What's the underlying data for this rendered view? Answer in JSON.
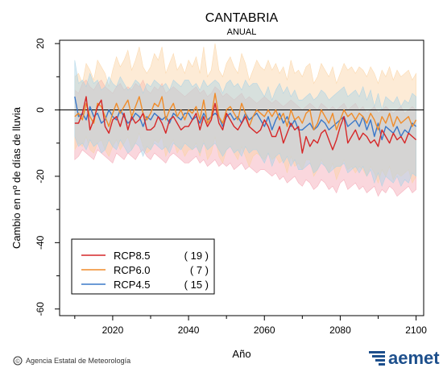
{
  "chart_data": {
    "type": "line",
    "title": "CANTABRIA",
    "subtitle": "ANUAL",
    "xlabel": "Año",
    "ylabel": "Cambio en nº de días de lluvia",
    "xlim": [
      2006,
      2102
    ],
    "ylim": [
      -62,
      21
    ],
    "x_ticks": [
      "2020",
      "2040",
      "2060",
      "2080",
      "2100"
    ],
    "y_ticks": [
      "20",
      "0",
      "-20",
      "-40",
      "-60"
    ],
    "zero_line": true,
    "legend_position": "bottom-left",
    "x": [
      2010,
      2011,
      2012,
      2013,
      2014,
      2015,
      2016,
      2017,
      2018,
      2019,
      2020,
      2021,
      2022,
      2023,
      2024,
      2025,
      2026,
      2027,
      2028,
      2029,
      2030,
      2031,
      2032,
      2033,
      2034,
      2035,
      2036,
      2037,
      2038,
      2039,
      2040,
      2041,
      2042,
      2043,
      2044,
      2045,
      2046,
      2047,
      2048,
      2049,
      2050,
      2051,
      2052,
      2053,
      2054,
      2055,
      2056,
      2057,
      2058,
      2059,
      2060,
      2061,
      2062,
      2063,
      2064,
      2065,
      2066,
      2067,
      2068,
      2069,
      2070,
      2071,
      2072,
      2073,
      2074,
      2075,
      2076,
      2077,
      2078,
      2079,
      2080,
      2081,
      2082,
      2083,
      2084,
      2085,
      2086,
      2087,
      2088,
      2089,
      2090,
      2091,
      2092,
      2093,
      2094,
      2095,
      2096,
      2097,
      2098,
      2099,
      2100
    ],
    "series": [
      {
        "name": "RCP8.5",
        "count": "( 19 )",
        "color": "#d62728",
        "band_color": "#f4a6b4",
        "values": [
          -4,
          -4,
          -1,
          4,
          -6,
          -3,
          1,
          3,
          -5,
          -7,
          -3,
          -2,
          -5,
          -1,
          -6,
          -2,
          -4,
          -3,
          -1,
          -6,
          -6,
          -5,
          -2,
          -4,
          -7,
          -3,
          -2,
          -4,
          -6,
          -5,
          -5,
          -3,
          -1,
          -6,
          -2,
          -5,
          -3,
          2,
          -4,
          -6,
          -1,
          -3,
          -5,
          -6,
          -4,
          -2,
          -5,
          -6,
          -7,
          -6,
          -3,
          -5,
          -8,
          -8,
          -5,
          -10,
          -7,
          -4,
          -6,
          -5,
          -13,
          -8,
          -11,
          -9,
          -10,
          -7,
          -6,
          -9,
          -12,
          -9,
          -5,
          -2,
          -10,
          -8,
          -6,
          -9,
          -7,
          -8,
          -10,
          -9,
          -11,
          -6,
          -8,
          -10,
          -7,
          -9,
          -8,
          -10,
          -7,
          -8,
          -9
        ],
        "low": [
          -15,
          -14,
          -12,
          -13,
          -14,
          -15,
          -12,
          -13,
          -14,
          -15,
          -16,
          -13,
          -14,
          -15,
          -13,
          -14,
          -15,
          -13,
          -12,
          -14,
          -15,
          -13,
          -14,
          -15,
          -16,
          -14,
          -13,
          -14,
          -15,
          -16,
          -16,
          -15,
          -14,
          -16,
          -15,
          -17,
          -16,
          -15,
          -17,
          -16,
          -17,
          -16,
          -18,
          -17,
          -16,
          -18,
          -17,
          -18,
          -19,
          -18,
          -18,
          -19,
          -20,
          -19,
          -21,
          -20,
          -22,
          -21,
          -20,
          -22,
          -23,
          -21,
          -22,
          -24,
          -23,
          -21,
          -22,
          -24,
          -23,
          -25,
          -22,
          -21,
          -24,
          -23,
          -22,
          -24,
          -23,
          -25,
          -24,
          -23,
          -26,
          -24,
          -25,
          -23,
          -24,
          -26,
          -25,
          -24,
          -23,
          -25,
          -24
        ],
        "high": [
          6,
          5,
          8,
          9,
          7,
          6,
          8,
          9,
          7,
          6,
          5,
          7,
          8,
          6,
          7,
          6,
          8,
          7,
          9,
          6,
          5,
          7,
          6,
          8,
          5,
          6,
          7,
          6,
          5,
          4,
          5,
          6,
          7,
          5,
          6,
          4,
          5,
          7,
          6,
          4,
          5,
          4,
          3,
          4,
          5,
          3,
          4,
          3,
          2,
          3,
          4,
          3,
          2,
          3,
          2,
          1,
          2,
          3,
          2,
          1,
          0,
          1,
          2,
          1,
          0,
          2,
          1,
          0,
          1,
          0,
          1,
          2,
          0,
          1,
          2,
          0,
          1,
          -1,
          0,
          1,
          -1,
          0,
          1,
          0,
          -1,
          0,
          1,
          -1,
          0,
          1,
          0
        ]
      },
      {
        "name": "RCP6.0",
        "count": "(  7 )",
        "color": "#f08c2a",
        "band_color": "#fbd3a3",
        "values": [
          -2,
          -1,
          -3,
          2,
          -2,
          -4,
          2,
          1,
          -2,
          -5,
          -1,
          2,
          -1,
          1,
          3,
          -2,
          1,
          4,
          -1,
          -3,
          -1,
          2,
          1,
          4,
          -3,
          0,
          2,
          -2,
          0,
          -3,
          0,
          -1,
          1,
          -3,
          3,
          -4,
          -2,
          5,
          -2,
          -4,
          0,
          1,
          -1,
          -3,
          2,
          -1,
          -5,
          -2,
          0,
          -1,
          -2,
          0,
          -2,
          0,
          -3,
          -1,
          -5,
          0,
          -3,
          -2,
          -4,
          -1,
          0,
          -6,
          -4,
          0,
          -2,
          -4,
          -1,
          -6,
          -3,
          0,
          -2,
          -1,
          -3,
          -1,
          -2,
          -4,
          -1,
          -3,
          -6,
          -2,
          -4,
          -1,
          -5,
          -2,
          -4,
          -3,
          -2,
          -5,
          -3
        ],
        "low": [
          -12,
          -10,
          -11,
          -8,
          -12,
          -13,
          -10,
          -9,
          -12,
          -14,
          -11,
          -9,
          -12,
          -10,
          -8,
          -12,
          -10,
          -7,
          -11,
          -13,
          -12,
          -9,
          -10,
          -8,
          -14,
          -11,
          -9,
          -13,
          -11,
          -14,
          -12,
          -12,
          -10,
          -14,
          -9,
          -15,
          -13,
          -8,
          -14,
          -16,
          -12,
          -11,
          -13,
          -15,
          -11,
          -14,
          -17,
          -14,
          -13,
          -14,
          -15,
          -13,
          -15,
          -14,
          -16,
          -15,
          -19,
          -14,
          -17,
          -16,
          -18,
          -15,
          -15,
          -20,
          -18,
          -15,
          -17,
          -19,
          -16,
          -21,
          -18,
          -15,
          -18,
          -17,
          -19,
          -17,
          -18,
          -20,
          -17,
          -19,
          -22,
          -18,
          -20,
          -17,
          -21,
          -19,
          -20,
          -19,
          -18,
          -22,
          -20
        ],
        "high": [
          10,
          11,
          8,
          14,
          12,
          9,
          15,
          13,
          11,
          7,
          12,
          16,
          13,
          15,
          18,
          12,
          15,
          19,
          13,
          11,
          13,
          17,
          15,
          19,
          11,
          14,
          17,
          12,
          14,
          11,
          15,
          13,
          16,
          11,
          19,
          10,
          12,
          20,
          12,
          10,
          14,
          16,
          13,
          11,
          17,
          14,
          9,
          12,
          15,
          13,
          12,
          15,
          12,
          14,
          11,
          13,
          9,
          15,
          11,
          12,
          10,
          13,
          14,
          8,
          10,
          14,
          12,
          10,
          13,
          8,
          11,
          14,
          12,
          13,
          11,
          13,
          12,
          10,
          13,
          11,
          8,
          12,
          10,
          13,
          9,
          12,
          10,
          11,
          12,
          9,
          11
        ]
      },
      {
        "name": "RCP4.5",
        "count": "( 15 )",
        "color": "#3a78c9",
        "band_color": "#a9d2e6",
        "values": [
          4,
          -2,
          -1,
          -3,
          1,
          -2,
          -1,
          -4,
          -3,
          0,
          -2,
          -3,
          0,
          -2,
          -4,
          -3,
          -1,
          -2,
          -5,
          -2,
          -3,
          -1,
          -2,
          -3,
          -2,
          -4,
          -1,
          -2,
          -3,
          -1,
          -1,
          -3,
          -2,
          -4,
          -1,
          -3,
          -2,
          -1,
          -2,
          -5,
          -2,
          -1,
          -3,
          -2,
          -4,
          -1,
          -3,
          -2,
          -1,
          -3,
          -5,
          -2,
          -6,
          -3,
          -1,
          -4,
          -2,
          -5,
          -3,
          -6,
          -6,
          -5,
          -4,
          -6,
          -5,
          -3,
          -4,
          -6,
          -5,
          -4,
          -3,
          -2,
          -5,
          -4,
          -3,
          -5,
          -2,
          -6,
          -3,
          -8,
          -4,
          -9,
          -5,
          -6,
          -7,
          -5,
          -8,
          -6,
          -7,
          -4,
          -5
        ],
        "low": [
          -8,
          -11,
          -10,
          -12,
          -9,
          -11,
          -10,
          -13,
          -12,
          -9,
          -11,
          -12,
          -9,
          -11,
          -13,
          -12,
          -10,
          -11,
          -14,
          -11,
          -12,
          -10,
          -11,
          -12,
          -11,
          -13,
          -10,
          -11,
          -12,
          -10,
          -11,
          -12,
          -11,
          -13,
          -10,
          -12,
          -11,
          -10,
          -12,
          -14,
          -12,
          -11,
          -13,
          -12,
          -14,
          -11,
          -13,
          -12,
          -12,
          -14,
          -16,
          -13,
          -17,
          -14,
          -13,
          -16,
          -14,
          -17,
          -15,
          -18,
          -18,
          -17,
          -16,
          -19,
          -18,
          -16,
          -17,
          -19,
          -18,
          -17,
          -17,
          -16,
          -19,
          -18,
          -17,
          -19,
          -17,
          -20,
          -18,
          -22,
          -19,
          -23,
          -20,
          -21,
          -22,
          -20,
          -23,
          -21,
          -22,
          -19,
          -20
        ],
        "high": [
          15,
          8,
          9,
          7,
          11,
          8,
          9,
          6,
          7,
          10,
          8,
          7,
          10,
          8,
          6,
          7,
          9,
          8,
          5,
          8,
          7,
          9,
          8,
          7,
          8,
          6,
          9,
          8,
          7,
          9,
          9,
          7,
          8,
          6,
          9,
          7,
          8,
          9,
          8,
          5,
          8,
          9,
          7,
          8,
          6,
          9,
          7,
          8,
          8,
          6,
          4,
          7,
          3,
          6,
          8,
          5,
          7,
          4,
          6,
          3,
          3,
          4,
          5,
          3,
          4,
          6,
          5,
          3,
          4,
          5,
          6,
          7,
          4,
          5,
          6,
          4,
          7,
          3,
          6,
          1,
          5,
          0,
          4,
          3,
          2,
          4,
          1,
          3,
          2,
          5,
          4
        ]
      }
    ]
  },
  "footer": {
    "credit": "Agencia Estatal de Meteorología",
    "copyright_symbol": "©",
    "brand": "aemet"
  }
}
